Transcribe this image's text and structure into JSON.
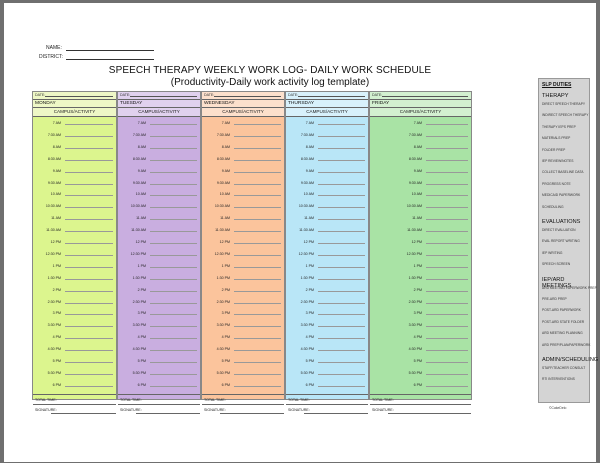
{
  "header": {
    "name_label": "NAME:",
    "district_label": "DISTRICT:",
    "title": "SPEECH THERAPY WEEKLY WORK LOG- DAILY WORK SCHEDULE",
    "subtitle": "(Productivity-Daily work activity log template)"
  },
  "labels": {
    "date": "DATE:",
    "campus": "CAMPUS/ACTIVITY",
    "total_time": "TOTAL TIME:",
    "signature": "SIGNATURE:"
  },
  "days": [
    {
      "name": "MONDAY",
      "color": "#dcf58e",
      "header_color": "#eef7c6"
    },
    {
      "name": "TUESDAY",
      "color": "#c9aee0",
      "header_color": "#e0d1ee"
    },
    {
      "name": "WEDNESDAY",
      "color": "#fbc49c",
      "header_color": "#fce0cc"
    },
    {
      "name": "THURSDAY",
      "color": "#b9e6f7",
      "header_color": "#d8f1fb"
    },
    {
      "name": "FRIDAY",
      "color": "#a9e3a5",
      "header_color": "#d3f0d0"
    }
  ],
  "times": [
    "7 AM",
    "7:30 AM",
    "8 AM",
    "8:30 AM",
    "9 AM",
    "9:30 AM",
    "10 AM",
    "10:30 AM",
    "11 AM",
    "11:30 AM",
    "12 PM",
    "12:30 PM",
    "1 PM",
    "1:30 PM",
    "2 PM",
    "2:30 PM",
    "3 PM",
    "3:30 PM",
    "4 PM",
    "4:30 PM",
    "5 PM",
    "5:30 PM",
    "6 PM"
  ],
  "duties": {
    "title": "SLP DUTIES",
    "sections": [
      {
        "heading": "THERAPY",
        "items": [
          "DIRECT SPEECH THERAPY",
          "INDIRECT SPEECH THERAPY",
          "THERAPY IEPS PREP",
          "MATERIALS PREP",
          "FOLDER PREP",
          "IEP REVIEW/NOTES",
          "COLLECT BASELINE DATA",
          "PROGRESS NOTE",
          "MEDICAID PAPERWORK",
          "SCHEDULING"
        ]
      },
      {
        "heading": "EVALUATIONS",
        "items": [
          "DIRECT EVALUATION",
          "EVAL REPORT WRITING",
          "IEP WRITING",
          "SPEECH SCREEN"
        ]
      },
      {
        "heading": "IEP/ARD MEETINGS",
        "items": [
          "ARD MEETING PAPERWORK PREP",
          "PRE-ARD PREP",
          "POST-ARD PAPERWORK",
          "POST-ARD STATE FOLDER",
          "ARD MEETING PLANNING",
          "ARD PREP/PLAN/PAPERWORK"
        ]
      },
      {
        "heading": "ADMIN/SCHEDULING",
        "items": [
          "STAFF/TEACHER CONSULT",
          "RTI INTERVENTIONS"
        ]
      }
    ]
  },
  "copyright": "©CakeDelo"
}
